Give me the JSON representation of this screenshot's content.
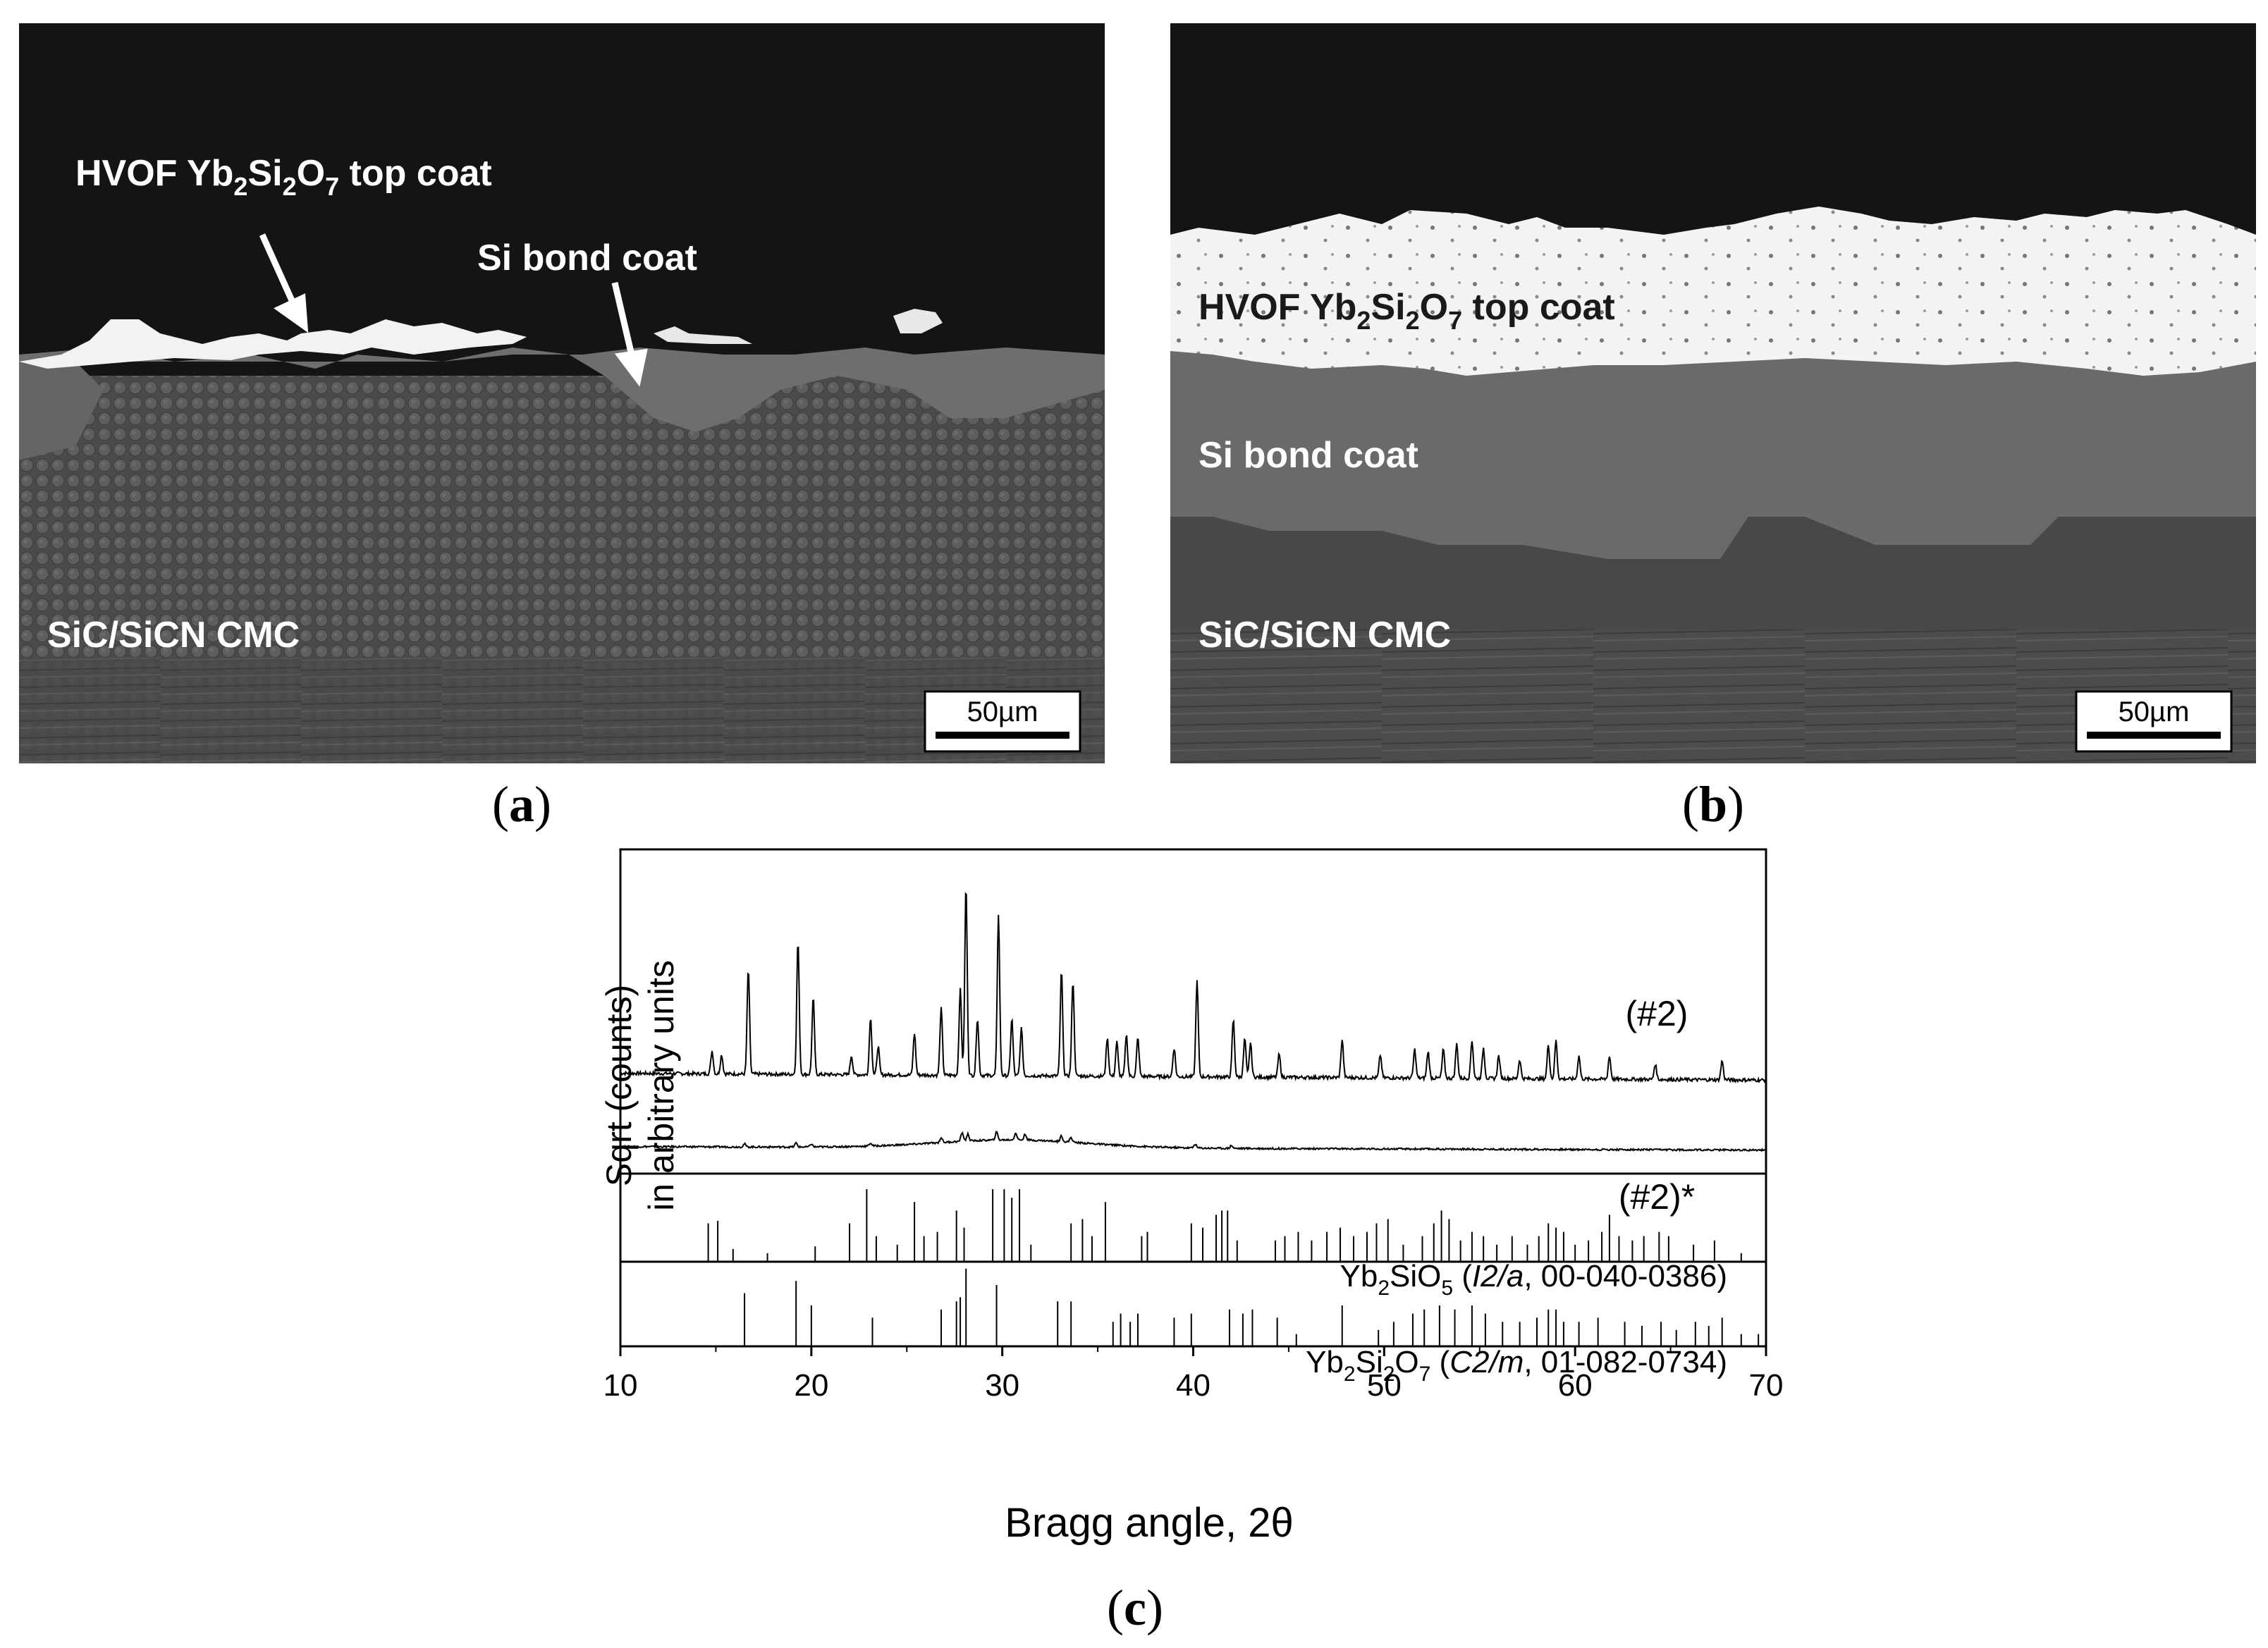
{
  "panel_a": {
    "label_topcoat": {
      "pre": "HVOF Yb",
      "s1": "2",
      "mid1": "Si",
      "s2": "2",
      "mid2": "O",
      "s3": "7",
      "post": " top coat"
    },
    "label_bondcoat": "Si bond coat",
    "label_substrate": "SiC/SiCN CMC",
    "scalebar": "50µm",
    "caption": "a"
  },
  "panel_b": {
    "label_topcoat": {
      "pre": "HVOF Yb",
      "s1": "2",
      "mid1": "Si",
      "s2": "2",
      "mid2": "O",
      "s3": "7",
      "post": " top coat"
    },
    "label_bondcoat": "Si bond coat",
    "label_substrate": "SiC/SiCN CMC",
    "scalebar": "50µm",
    "caption": "b"
  },
  "panel_c": {
    "caption": "c",
    "chart_data": {
      "type": "line",
      "xlabel": "Bragg angle, 2θ",
      "ylabel_line1": "Sqrt (counts)",
      "ylabel_line2": "in arbitrary units",
      "xlim": [
        10,
        70
      ],
      "xticks": [
        "10",
        "20",
        "30",
        "40",
        "50",
        "60",
        "70"
      ],
      "grid": false,
      "series": [
        {
          "name": "(#2)",
          "baseline": 0.12,
          "peaks": [
            [
              14.8,
              0.12
            ],
            [
              15.3,
              0.1
            ],
            [
              16.7,
              0.55
            ],
            [
              19.3,
              0.7
            ],
            [
              20.1,
              0.4
            ],
            [
              22.1,
              0.1
            ],
            [
              23.1,
              0.3
            ],
            [
              23.5,
              0.15
            ],
            [
              25.4,
              0.22
            ],
            [
              26.8,
              0.35
            ],
            [
              27.8,
              0.45
            ],
            [
              28.1,
              1.0
            ],
            [
              28.7,
              0.3
            ],
            [
              29.8,
              0.85
            ],
            [
              30.5,
              0.3
            ],
            [
              31.0,
              0.25
            ],
            [
              33.1,
              0.55
            ],
            [
              33.7,
              0.5
            ],
            [
              35.5,
              0.2
            ],
            [
              36.0,
              0.18
            ],
            [
              36.5,
              0.22
            ],
            [
              37.1,
              0.2
            ],
            [
              39.0,
              0.15
            ],
            [
              40.2,
              0.5
            ],
            [
              42.1,
              0.3
            ],
            [
              42.7,
              0.2
            ],
            [
              43.0,
              0.18
            ],
            [
              44.5,
              0.12
            ],
            [
              47.8,
              0.2
            ],
            [
              49.8,
              0.12
            ],
            [
              51.6,
              0.15
            ],
            [
              52.3,
              0.14
            ],
            [
              53.1,
              0.15
            ],
            [
              53.8,
              0.18
            ],
            [
              54.6,
              0.2
            ],
            [
              55.2,
              0.16
            ],
            [
              56.0,
              0.12
            ],
            [
              57.1,
              0.1
            ],
            [
              58.6,
              0.18
            ],
            [
              59.0,
              0.2
            ],
            [
              60.2,
              0.12
            ],
            [
              61.8,
              0.12
            ],
            [
              64.2,
              0.08
            ],
            [
              67.7,
              0.1
            ]
          ]
        },
        {
          "name": "(#2)*",
          "baseline": 0.06,
          "hump": {
            "center": 30.5,
            "width": 5.5,
            "height": 0.08
          },
          "peaks": [
            [
              16.5,
              0.03
            ],
            [
              19.2,
              0.04
            ],
            [
              20.0,
              0.03
            ],
            [
              23.1,
              0.03
            ],
            [
              26.8,
              0.05
            ],
            [
              27.9,
              0.09
            ],
            [
              28.2,
              0.07
            ],
            [
              29.7,
              0.08
            ],
            [
              30.7,
              0.07
            ],
            [
              31.2,
              0.06
            ],
            [
              33.1,
              0.06
            ],
            [
              33.6,
              0.05
            ],
            [
              40.1,
              0.04
            ],
            [
              42.0,
              0.03
            ]
          ]
        }
      ],
      "references": [
        {
          "label": {
            "pre": "Yb",
            "s1": "2",
            "mid1": "SiO",
            "s2": "5",
            "open": " (",
            "it": "I2/a",
            "rest": ", 00-040-0386)"
          },
          "sticks": [
            [
              14.6,
              0.45
            ],
            [
              15.1,
              0.48
            ],
            [
              15.9,
              0.15
            ],
            [
              17.7,
              0.1
            ],
            [
              20.2,
              0.18
            ],
            [
              22.0,
              0.45
            ],
            [
              22.9,
              0.85
            ],
            [
              23.4,
              0.3
            ],
            [
              24.5,
              0.2
            ],
            [
              25.4,
              0.7
            ],
            [
              25.9,
              0.3
            ],
            [
              26.6,
              0.35
            ],
            [
              27.6,
              0.6
            ],
            [
              28.0,
              0.4
            ],
            [
              29.5,
              0.85
            ],
            [
              30.1,
              0.85
            ],
            [
              30.5,
              0.75
            ],
            [
              30.9,
              0.85
            ],
            [
              31.5,
              0.2
            ],
            [
              33.6,
              0.45
            ],
            [
              34.2,
              0.5
            ],
            [
              34.7,
              0.3
            ],
            [
              35.4,
              0.7
            ],
            [
              37.3,
              0.3
            ],
            [
              37.6,
              0.35
            ],
            [
              39.9,
              0.45
            ],
            [
              40.5,
              0.4
            ],
            [
              41.2,
              0.55
            ],
            [
              41.5,
              0.6
            ],
            [
              41.8,
              0.6
            ],
            [
              42.3,
              0.25
            ],
            [
              44.3,
              0.25
            ],
            [
              44.8,
              0.3
            ],
            [
              45.5,
              0.35
            ],
            [
              46.2,
              0.25
            ],
            [
              47.0,
              0.35
            ],
            [
              47.7,
              0.4
            ],
            [
              48.4,
              0.3
            ],
            [
              49.1,
              0.35
            ],
            [
              49.6,
              0.45
            ],
            [
              50.2,
              0.5
            ],
            [
              51.0,
              0.2
            ],
            [
              52.0,
              0.3
            ],
            [
              52.6,
              0.45
            ],
            [
              53.0,
              0.6
            ],
            [
              53.4,
              0.5
            ],
            [
              54.0,
              0.25
            ],
            [
              54.6,
              0.35
            ],
            [
              55.2,
              0.3
            ],
            [
              55.9,
              0.2
            ],
            [
              56.7,
              0.3
            ],
            [
              57.5,
              0.2
            ],
            [
              58.1,
              0.3
            ],
            [
              58.6,
              0.45
            ],
            [
              59.0,
              0.4
            ],
            [
              59.4,
              0.35
            ],
            [
              60.0,
              0.2
            ],
            [
              60.7,
              0.25
            ],
            [
              61.4,
              0.35
            ],
            [
              61.8,
              0.55
            ],
            [
              62.3,
              0.3
            ],
            [
              63.0,
              0.25
            ],
            [
              63.6,
              0.3
            ],
            [
              64.4,
              0.35
            ],
            [
              64.9,
              0.3
            ],
            [
              66.2,
              0.2
            ],
            [
              67.3,
              0.25
            ],
            [
              68.7,
              0.1
            ]
          ]
        },
        {
          "label": {
            "pre": "Yb",
            "s1": "2",
            "mid1": "Si",
            "s2": "2",
            "mid2": "O",
            "s3": "7",
            "open": " (",
            "it": "C2/m",
            "rest": ", 01-082-0734)"
          },
          "sticks": [
            [
              16.5,
              0.65
            ],
            [
              19.2,
              0.8
            ],
            [
              20.0,
              0.5
            ],
            [
              23.2,
              0.35
            ],
            [
              26.8,
              0.45
            ],
            [
              27.6,
              0.55
            ],
            [
              27.8,
              0.6
            ],
            [
              28.1,
              0.95
            ],
            [
              29.7,
              0.75
            ],
            [
              32.9,
              0.55
            ],
            [
              33.6,
              0.55
            ],
            [
              35.8,
              0.3
            ],
            [
              36.2,
              0.4
            ],
            [
              36.7,
              0.3
            ],
            [
              37.1,
              0.4
            ],
            [
              39.0,
              0.35
            ],
            [
              39.9,
              0.4
            ],
            [
              41.9,
              0.45
            ],
            [
              42.6,
              0.4
            ],
            [
              43.1,
              0.45
            ],
            [
              44.4,
              0.35
            ],
            [
              45.4,
              0.15
            ],
            [
              47.8,
              0.5
            ],
            [
              49.7,
              0.2
            ],
            [
              50.5,
              0.3
            ],
            [
              51.5,
              0.4
            ],
            [
              52.1,
              0.45
            ],
            [
              52.9,
              0.5
            ],
            [
              53.7,
              0.45
            ],
            [
              54.6,
              0.5
            ],
            [
              55.3,
              0.4
            ],
            [
              56.2,
              0.3
            ],
            [
              57.1,
              0.3
            ],
            [
              58.0,
              0.35
            ],
            [
              58.6,
              0.45
            ],
            [
              59.0,
              0.45
            ],
            [
              59.4,
              0.3
            ],
            [
              60.2,
              0.3
            ],
            [
              61.2,
              0.35
            ],
            [
              62.6,
              0.3
            ],
            [
              63.5,
              0.25
            ],
            [
              64.5,
              0.3
            ],
            [
              65.3,
              0.2
            ],
            [
              66.3,
              0.3
            ],
            [
              67.0,
              0.25
            ],
            [
              67.7,
              0.35
            ],
            [
              68.7,
              0.15
            ],
            [
              69.6,
              0.15
            ]
          ]
        }
      ]
    }
  }
}
